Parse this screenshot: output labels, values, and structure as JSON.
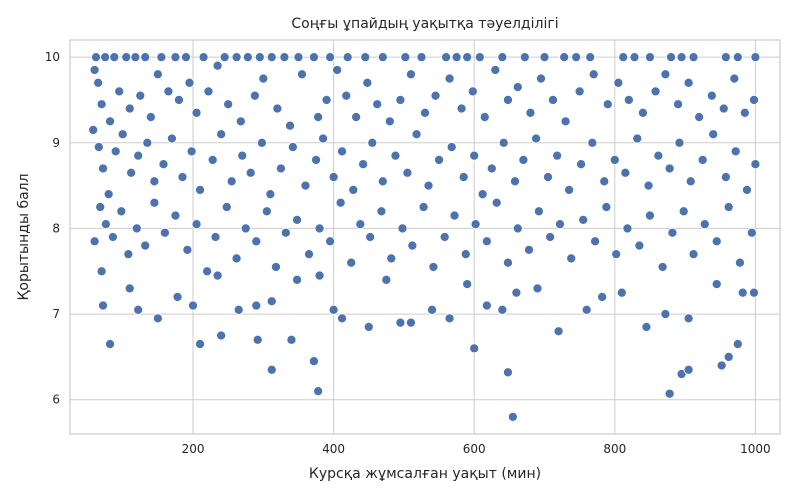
{
  "chart_data": {
    "type": "scatter",
    "title": "Соңғы ұпайдың уақытқа тәуелділігі",
    "xlabel": "Курсқа жұмсалған уақыт (мин)",
    "ylabel": "Қорытынды балл",
    "xlim": [
      25,
      1035
    ],
    "ylim": [
      5.6,
      10.2
    ],
    "xticks": [
      200,
      400,
      600,
      800,
      1000
    ],
    "yticks": [
      6,
      7,
      8,
      9,
      10
    ],
    "xtick_labels": [
      "200",
      "400",
      "600",
      "800",
      "1000"
    ],
    "ytick_labels": [
      "6",
      "7",
      "8",
      "9",
      "10"
    ],
    "grid": true,
    "legend": "none",
    "colors": {
      "point": "#4c72b0",
      "point_edge": "#ffffff",
      "grid": "#cccccc",
      "background": "#ffffff"
    },
    "series": [
      {
        "points": [
          [
            62,
            10.0
          ],
          [
            75,
            10.0
          ],
          [
            88,
            10.0
          ],
          [
            105,
            10.0
          ],
          [
            118,
            10.0
          ],
          [
            132,
            10.0
          ],
          [
            155,
            10.0
          ],
          [
            175,
            10.0
          ],
          [
            190,
            10.0
          ],
          [
            215,
            10.0
          ],
          [
            245,
            10.0
          ],
          [
            262,
            10.0
          ],
          [
            278,
            10.0
          ],
          [
            295,
            10.0
          ],
          [
            312,
            10.0
          ],
          [
            330,
            10.0
          ],
          [
            350,
            10.0
          ],
          [
            372,
            10.0
          ],
          [
            395,
            10.0
          ],
          [
            420,
            10.0
          ],
          [
            445,
            10.0
          ],
          [
            470,
            10.0
          ],
          [
            502,
            10.0
          ],
          [
            525,
            10.0
          ],
          [
            560,
            10.0
          ],
          [
            575,
            10.0
          ],
          [
            590,
            10.0
          ],
          [
            608,
            10.0
          ],
          [
            640,
            10.0
          ],
          [
            672,
            10.0
          ],
          [
            700,
            10.0
          ],
          [
            728,
            10.0
          ],
          [
            745,
            10.0
          ],
          [
            765,
            10.0
          ],
          [
            812,
            10.0
          ],
          [
            828,
            10.0
          ],
          [
            850,
            10.0
          ],
          [
            880,
            10.0
          ],
          [
            895,
            10.0
          ],
          [
            912,
            10.0
          ],
          [
            958,
            10.0
          ],
          [
            975,
            10.0
          ],
          [
            1000,
            10.0
          ],
          [
            60,
            9.85
          ],
          [
            65,
            9.7
          ],
          [
            70,
            9.45
          ],
          [
            82,
            9.25
          ],
          [
            95,
            9.6
          ],
          [
            110,
            9.4
          ],
          [
            125,
            9.55
          ],
          [
            140,
            9.3
          ],
          [
            150,
            9.8
          ],
          [
            165,
            9.6
          ],
          [
            180,
            9.5
          ],
          [
            195,
            9.7
          ],
          [
            205,
            9.35
          ],
          [
            222,
            9.6
          ],
          [
            235,
            9.9
          ],
          [
            250,
            9.45
          ],
          [
            268,
            9.25
          ],
          [
            288,
            9.55
          ],
          [
            300,
            9.75
          ],
          [
            320,
            9.4
          ],
          [
            338,
            9.2
          ],
          [
            355,
            9.8
          ],
          [
            378,
            9.3
          ],
          [
            390,
            9.5
          ],
          [
            405,
            9.85
          ],
          [
            418,
            9.55
          ],
          [
            432,
            9.3
          ],
          [
            448,
            9.7
          ],
          [
            462,
            9.45
          ],
          [
            480,
            9.25
          ],
          [
            495,
            9.5
          ],
          [
            510,
            9.8
          ],
          [
            530,
            9.35
          ],
          [
            545,
            9.55
          ],
          [
            565,
            9.75
          ],
          [
            582,
            9.4
          ],
          [
            598,
            9.6
          ],
          [
            615,
            9.3
          ],
          [
            630,
            9.85
          ],
          [
            648,
            9.5
          ],
          [
            662,
            9.65
          ],
          [
            680,
            9.35
          ],
          [
            695,
            9.75
          ],
          [
            712,
            9.5
          ],
          [
            730,
            9.25
          ],
          [
            750,
            9.6
          ],
          [
            770,
            9.8
          ],
          [
            790,
            9.45
          ],
          [
            805,
            9.7
          ],
          [
            820,
            9.5
          ],
          [
            840,
            9.35
          ],
          [
            858,
            9.6
          ],
          [
            872,
            9.8
          ],
          [
            890,
            9.45
          ],
          [
            905,
            9.7
          ],
          [
            920,
            9.3
          ],
          [
            938,
            9.55
          ],
          [
            955,
            9.4
          ],
          [
            970,
            9.75
          ],
          [
            985,
            9.35
          ],
          [
            998,
            9.5
          ],
          [
            58,
            9.15
          ],
          [
            66,
            8.95
          ],
          [
            72,
            8.7
          ],
          [
            80,
            8.4
          ],
          [
            90,
            8.9
          ],
          [
            100,
            9.1
          ],
          [
            112,
            8.65
          ],
          [
            122,
            8.85
          ],
          [
            135,
            9.0
          ],
          [
            145,
            8.55
          ],
          [
            158,
            8.75
          ],
          [
            170,
            9.05
          ],
          [
            185,
            8.6
          ],
          [
            198,
            8.9
          ],
          [
            210,
            8.45
          ],
          [
            228,
            8.8
          ],
          [
            240,
            9.1
          ],
          [
            255,
            8.55
          ],
          [
            270,
            8.85
          ],
          [
            282,
            8.65
          ],
          [
            298,
            9.0
          ],
          [
            310,
            8.4
          ],
          [
            325,
            8.7
          ],
          [
            342,
            8.95
          ],
          [
            360,
            8.5
          ],
          [
            375,
            8.8
          ],
          [
            385,
            9.05
          ],
          [
            400,
            8.6
          ],
          [
            412,
            8.9
          ],
          [
            428,
            8.45
          ],
          [
            442,
            8.75
          ],
          [
            455,
            9.0
          ],
          [
            470,
            8.55
          ],
          [
            488,
            8.85
          ],
          [
            505,
            8.65
          ],
          [
            518,
            9.1
          ],
          [
            535,
            8.5
          ],
          [
            550,
            8.8
          ],
          [
            568,
            8.95
          ],
          [
            585,
            8.6
          ],
          [
            600,
            8.85
          ],
          [
            612,
            8.4
          ],
          [
            625,
            8.7
          ],
          [
            642,
            9.0
          ],
          [
            658,
            8.55
          ],
          [
            670,
            8.8
          ],
          [
            688,
            9.05
          ],
          [
            705,
            8.6
          ],
          [
            718,
            8.85
          ],
          [
            735,
            8.45
          ],
          [
            752,
            8.75
          ],
          [
            768,
            9.0
          ],
          [
            785,
            8.55
          ],
          [
            800,
            8.8
          ],
          [
            815,
            8.65
          ],
          [
            832,
            9.05
          ],
          [
            848,
            8.5
          ],
          [
            862,
            8.85
          ],
          [
            878,
            8.7
          ],
          [
            892,
            9.0
          ],
          [
            908,
            8.55
          ],
          [
            925,
            8.8
          ],
          [
            940,
            9.1
          ],
          [
            958,
            8.6
          ],
          [
            972,
            8.9
          ],
          [
            988,
            8.45
          ],
          [
            1000,
            8.75
          ],
          [
            60,
            7.85
          ],
          [
            68,
            8.25
          ],
          [
            76,
            8.05
          ],
          [
            86,
            7.9
          ],
          [
            98,
            8.2
          ],
          [
            108,
            7.7
          ],
          [
            120,
            8.0
          ],
          [
            132,
            7.8
          ],
          [
            145,
            8.3
          ],
          [
            160,
            7.95
          ],
          [
            175,
            8.15
          ],
          [
            192,
            7.75
          ],
          [
            205,
            8.05
          ],
          [
            220,
            7.5
          ],
          [
            232,
            7.9
          ],
          [
            248,
            8.25
          ],
          [
            262,
            7.65
          ],
          [
            275,
            8.0
          ],
          [
            290,
            7.85
          ],
          [
            305,
            8.2
          ],
          [
            318,
            7.55
          ],
          [
            332,
            7.95
          ],
          [
            348,
            8.1
          ],
          [
            365,
            7.7
          ],
          [
            380,
            8.0
          ],
          [
            395,
            7.85
          ],
          [
            410,
            8.3
          ],
          [
            425,
            7.6
          ],
          [
            438,
            8.05
          ],
          [
            452,
            7.9
          ],
          [
            468,
            8.2
          ],
          [
            482,
            7.65
          ],
          [
            498,
            8.0
          ],
          [
            512,
            7.8
          ],
          [
            528,
            8.25
          ],
          [
            542,
            7.55
          ],
          [
            558,
            7.9
          ],
          [
            572,
            8.15
          ],
          [
            588,
            7.7
          ],
          [
            602,
            8.05
          ],
          [
            618,
            7.85
          ],
          [
            632,
            8.3
          ],
          [
            648,
            7.6
          ],
          [
            662,
            8.0
          ],
          [
            678,
            7.75
          ],
          [
            692,
            8.2
          ],
          [
            708,
            7.9
          ],
          [
            722,
            8.05
          ],
          [
            738,
            7.65
          ],
          [
            755,
            8.1
          ],
          [
            772,
            7.85
          ],
          [
            788,
            8.25
          ],
          [
            802,
            7.7
          ],
          [
            818,
            8.0
          ],
          [
            835,
            7.8
          ],
          [
            850,
            8.15
          ],
          [
            868,
            7.55
          ],
          [
            882,
            7.95
          ],
          [
            898,
            8.2
          ],
          [
            912,
            7.7
          ],
          [
            928,
            8.05
          ],
          [
            945,
            7.85
          ],
          [
            962,
            8.25
          ],
          [
            978,
            7.6
          ],
          [
            995,
            7.95
          ],
          [
            70,
            7.5
          ],
          [
            72,
            7.1
          ],
          [
            110,
            7.3
          ],
          [
            122,
            7.05
          ],
          [
            150,
            6.95
          ],
          [
            178,
            7.2
          ],
          [
            200,
            7.1
          ],
          [
            235,
            7.45
          ],
          [
            265,
            7.05
          ],
          [
            290,
            7.1
          ],
          [
            312,
            7.15
          ],
          [
            348,
            7.4
          ],
          [
            380,
            7.45
          ],
          [
            400,
            7.05
          ],
          [
            412,
            6.95
          ],
          [
            450,
            6.85
          ],
          [
            475,
            7.4
          ],
          [
            495,
            6.9
          ],
          [
            510,
            6.9
          ],
          [
            540,
            7.05
          ],
          [
            565,
            6.95
          ],
          [
            590,
            7.35
          ],
          [
            618,
            7.1
          ],
          [
            640,
            7.05
          ],
          [
            660,
            7.25
          ],
          [
            690,
            7.3
          ],
          [
            720,
            6.8
          ],
          [
            760,
            7.05
          ],
          [
            782,
            7.2
          ],
          [
            810,
            7.25
          ],
          [
            845,
            6.85
          ],
          [
            872,
            7.0
          ],
          [
            905,
            6.95
          ],
          [
            945,
            7.35
          ],
          [
            982,
            7.25
          ],
          [
            998,
            7.25
          ],
          [
            82,
            6.65
          ],
          [
            210,
            6.65
          ],
          [
            240,
            6.75
          ],
          [
            292,
            6.7
          ],
          [
            312,
            6.35
          ],
          [
            340,
            6.7
          ],
          [
            372,
            6.45
          ],
          [
            378,
            6.1
          ],
          [
            600,
            6.6
          ],
          [
            648,
            6.32
          ],
          [
            655,
            5.8
          ],
          [
            878,
            6.07
          ],
          [
            895,
            6.3
          ],
          [
            905,
            6.35
          ],
          [
            952,
            6.4
          ],
          [
            962,
            6.5
          ],
          [
            975,
            6.65
          ]
        ]
      }
    ]
  }
}
